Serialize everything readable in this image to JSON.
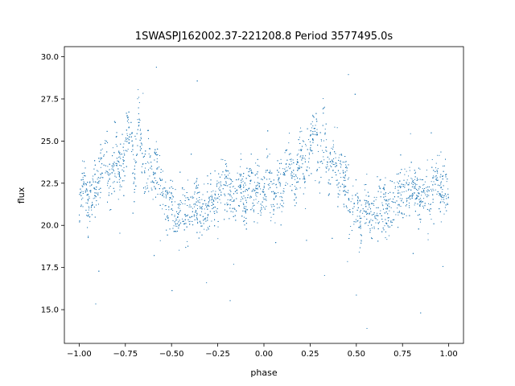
{
  "chart_data": {
    "type": "scatter",
    "title": "1SWASPJ162002.37-221208.8 Period 3577495.0s",
    "xlabel": "phase",
    "ylabel": "flux",
    "xlim": [
      -1.08,
      1.08
    ],
    "ylim": [
      13.0,
      30.6
    ],
    "xticks": [
      -1.0,
      -0.75,
      -0.5,
      -0.25,
      0.0,
      0.25,
      0.5,
      0.75,
      1.0
    ],
    "xtick_labels": [
      "−1.00",
      "−0.75",
      "−0.50",
      "−0.25",
      "0.00",
      "0.25",
      "0.50",
      "0.75",
      "1.00"
    ],
    "yticks": [
      15.0,
      17.5,
      20.0,
      22.5,
      25.0,
      27.5,
      30.0
    ],
    "ytick_labels": [
      "15.0",
      "17.5",
      "20.0",
      "22.5",
      "25.0",
      "27.5",
      "30.0"
    ],
    "grid": false,
    "marker_color": "#1f77b4",
    "series": [
      {
        "name": "",
        "description_points": [
          [
            -1.0,
            21.5
          ],
          [
            -0.97,
            23.0
          ],
          [
            -0.95,
            21.0
          ],
          [
            -0.92,
            22.5
          ],
          [
            -0.9,
            21.8
          ],
          [
            -0.88,
            24.0
          ],
          [
            -0.85,
            23.5
          ],
          [
            -0.83,
            22.0
          ],
          [
            -0.8,
            24.5
          ],
          [
            -0.78,
            23.0
          ],
          [
            -0.75,
            24.8
          ],
          [
            -0.72,
            26.0
          ],
          [
            -0.7,
            22.5
          ],
          [
            -0.68,
            26.5
          ],
          [
            -0.65,
            23.0
          ],
          [
            -0.62,
            24.5
          ],
          [
            -0.6,
            22.5
          ],
          [
            -0.58,
            23.5
          ],
          [
            -0.55,
            22.0
          ],
          [
            -0.52,
            21.0
          ],
          [
            -0.5,
            21.5
          ],
          [
            -0.47,
            20.0
          ],
          [
            -0.45,
            21.5
          ],
          [
            -0.42,
            20.5
          ],
          [
            -0.4,
            21.0
          ],
          [
            -0.37,
            21.5
          ],
          [
            -0.35,
            21.0
          ],
          [
            -0.32,
            20.8
          ],
          [
            -0.3,
            21.5
          ],
          [
            -0.27,
            21.5
          ],
          [
            -0.25,
            22.0
          ],
          [
            -0.22,
            22.0
          ],
          [
            -0.2,
            22.5
          ],
          [
            -0.18,
            22.0
          ],
          [
            -0.15,
            21.5
          ],
          [
            -0.12,
            22.5
          ],
          [
            -0.1,
            21.0
          ],
          [
            -0.08,
            23.0
          ],
          [
            -0.05,
            22.0
          ],
          [
            -0.02,
            22.0
          ],
          [
            0.0,
            21.5
          ],
          [
            0.03,
            23.0
          ],
          [
            0.05,
            21.0
          ],
          [
            0.08,
            22.5
          ],
          [
            0.1,
            21.8
          ],
          [
            0.12,
            24.0
          ],
          [
            0.15,
            23.5
          ],
          [
            0.17,
            22.0
          ],
          [
            0.2,
            24.5
          ],
          [
            0.22,
            23.0
          ],
          [
            0.25,
            24.8
          ],
          [
            0.28,
            26.0
          ],
          [
            0.3,
            22.5
          ],
          [
            0.32,
            26.5
          ],
          [
            0.35,
            23.0
          ],
          [
            0.38,
            24.5
          ],
          [
            0.4,
            22.5
          ],
          [
            0.42,
            23.5
          ],
          [
            0.45,
            22.0
          ],
          [
            0.48,
            21.0
          ],
          [
            0.5,
            21.5
          ],
          [
            0.53,
            20.0
          ],
          [
            0.55,
            21.5
          ],
          [
            0.58,
            20.5
          ],
          [
            0.6,
            21.0
          ],
          [
            0.63,
            21.5
          ],
          [
            0.65,
            21.0
          ],
          [
            0.68,
            20.8
          ],
          [
            0.7,
            21.5
          ],
          [
            0.73,
            21.5
          ],
          [
            0.75,
            22.0
          ],
          [
            0.78,
            22.0
          ],
          [
            0.8,
            22.5
          ],
          [
            0.82,
            22.0
          ],
          [
            0.85,
            21.5
          ],
          [
            0.88,
            22.5
          ],
          [
            0.9,
            21.0
          ],
          [
            0.92,
            23.0
          ],
          [
            0.95,
            22.0
          ],
          [
            0.98,
            22.0
          ],
          [
            1.0,
            21.5
          ]
        ]
      }
    ]
  }
}
